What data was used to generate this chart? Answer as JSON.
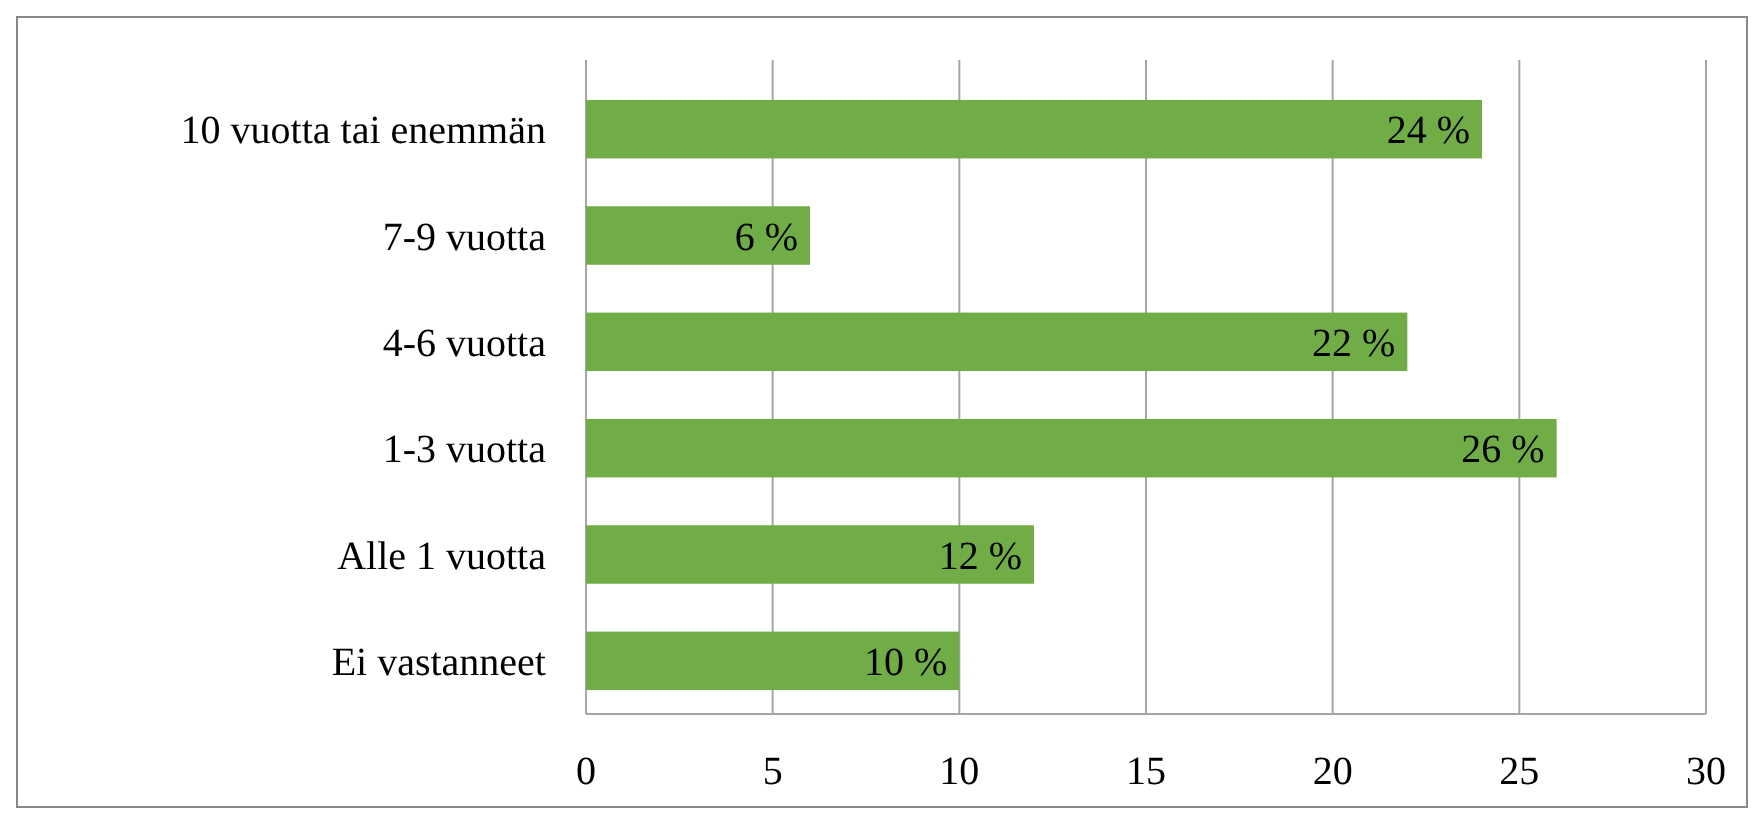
{
  "chart_data": {
    "type": "bar",
    "orientation": "horizontal",
    "categories": [
      "10 vuotta tai enemmän",
      "7-9 vuotta",
      "4-6 vuotta",
      "1-3 vuotta",
      "Alle 1 vuotta",
      "Ei vastanneet"
    ],
    "values": [
      24,
      6,
      22,
      26,
      12,
      10
    ],
    "value_labels": [
      "24 %",
      "6 %",
      "22 %",
      "26 %",
      "12 %",
      "10 %"
    ],
    "color": "#70ad47",
    "xlim": [
      0,
      30
    ],
    "xticks": [
      0,
      5,
      10,
      15,
      20,
      25,
      30
    ],
    "grid": "x"
  }
}
